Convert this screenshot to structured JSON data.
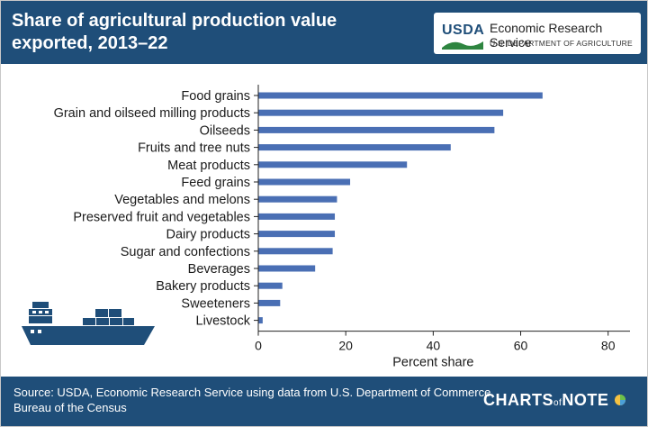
{
  "header": {
    "title": "Share of agricultural production value exported, 2013–22",
    "usda": "USDA",
    "ers_name": "Economic Research Service",
    "ers_dept": "U.S. DEPARTMENT OF AGRICULTURE"
  },
  "footer": {
    "source": "Source: USDA, Economic Research Service using data from U.S. Department of Commerce, Bureau of the Census",
    "charts_of_note_pre": "CHARTS",
    "charts_of_note_of": "of",
    "charts_of_note_post": "NOTE"
  },
  "colors": {
    "bar": "#4a6fb4",
    "header_bg": "#1f4e79",
    "logo_green": "#2e8540"
  },
  "icons": [
    "usda-logo-icon",
    "cargo-ship-icon",
    "pie-chart-icon"
  ],
  "chart_data": {
    "type": "bar",
    "orientation": "horizontal",
    "categories": [
      "Food grains",
      "Grain and oilseed milling products",
      "Oilseeds",
      "Fruits and tree nuts",
      "Meat products",
      "Feed grains",
      "Vegetables and melons",
      "Preserved fruit and vegetables",
      "Dairy products",
      "Sugar and confections",
      "Beverages",
      "Bakery products",
      "Sweeteners",
      "Livestock"
    ],
    "values": [
      65,
      56,
      54,
      44,
      34,
      21,
      18,
      17.5,
      17.5,
      17,
      13,
      5.5,
      5,
      1
    ],
    "xlabel": "Percent share",
    "ylabel": "",
    "xlim": [
      0,
      85
    ],
    "xticks": [
      0,
      20,
      40,
      60,
      80
    ],
    "grid": false
  }
}
